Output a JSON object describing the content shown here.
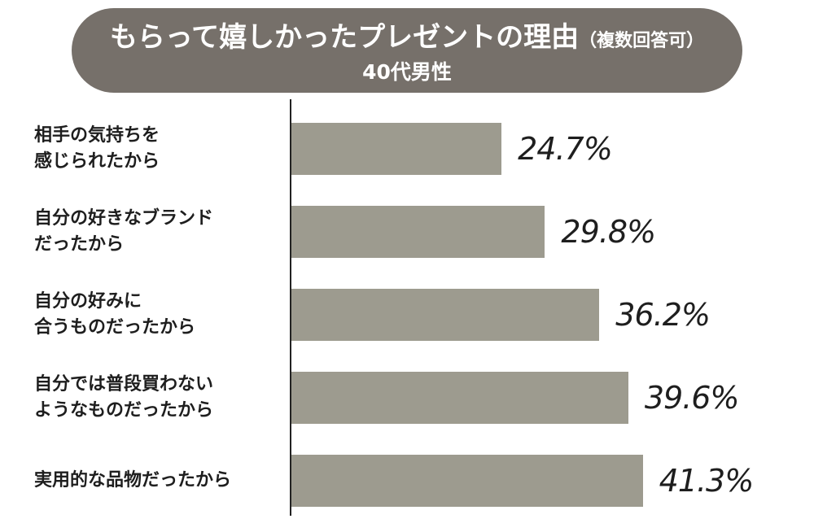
{
  "header": {
    "title": "もらって嬉しかったプレゼントの理由",
    "title_suffix": "（複数回答可）",
    "subtitle": "40代男性"
  },
  "colors": {
    "header_bg": "#76706a",
    "bar": "#9d9b8f",
    "axis": "#222222",
    "text": "#1e1e1e"
  },
  "chart_data": {
    "type": "bar",
    "orientation": "horizontal",
    "title": "もらって嬉しかったプレゼントの理由（複数回答可）",
    "subtitle": "40代男性",
    "unit": "%",
    "categories": [
      "相手の気持ちを\n感じられたから",
      "自分の好きなブランド\nだったから",
      "自分の好みに\n合うものだったから",
      "自分では普段買わない\nようなものだったから",
      "実用的な品物だったから"
    ],
    "values": [
      24.7,
      29.8,
      36.2,
      39.6,
      41.3
    ],
    "value_labels": [
      "24.7%",
      "29.8%",
      "36.2%",
      "39.6%",
      "41.3%"
    ],
    "xlim": [
      0,
      50
    ],
    "grid": false
  }
}
